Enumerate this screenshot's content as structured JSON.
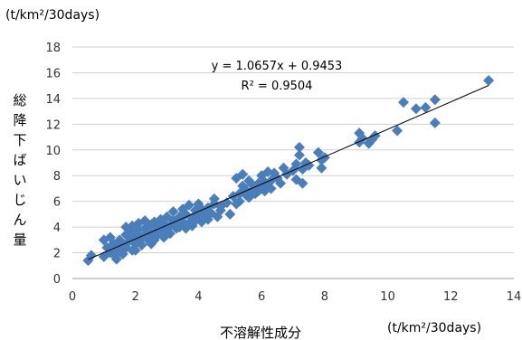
{
  "chart_data": {
    "type": "scatter",
    "x_unit": "(t/km²/30days)",
    "y_unit": "(t/km²/30days)",
    "xlabel": "不溶解性成分",
    "ylabel": "総降下ばいじん量",
    "xlim": [
      0,
      14
    ],
    "ylim": [
      0,
      18
    ],
    "x_ticks": [
      0,
      2,
      4,
      6,
      8,
      10,
      12,
      14
    ],
    "y_ticks": [
      0,
      2,
      4,
      6,
      8,
      10,
      12,
      14,
      16,
      18
    ],
    "grid": "horizontal",
    "marker_color": "#4a7ebb",
    "trendline": {
      "slope": 1.0657,
      "intercept": 0.9453,
      "x_range": [
        0.5,
        13.2
      ],
      "equation": "y = 1.0657x + 0.9453",
      "r2": "R² = 0.9504",
      "color": "#000000"
    },
    "points": [
      [
        0.5,
        1.4
      ],
      [
        0.6,
        1.8
      ],
      [
        1.0,
        1.7
      ],
      [
        1.0,
        3.0
      ],
      [
        1.1,
        2.4
      ],
      [
        1.2,
        3.2
      ],
      [
        1.2,
        2.0
      ],
      [
        1.3,
        1.9
      ],
      [
        1.3,
        2.7
      ],
      [
        1.4,
        1.5
      ],
      [
        1.4,
        2.4
      ],
      [
        1.5,
        2.1
      ],
      [
        1.5,
        3.0
      ],
      [
        1.6,
        2.6
      ],
      [
        1.6,
        1.9
      ],
      [
        1.7,
        3.4
      ],
      [
        1.7,
        2.4
      ],
      [
        1.7,
        4.0
      ],
      [
        1.8,
        2.9
      ],
      [
        1.8,
        3.6
      ],
      [
        1.9,
        2.2
      ],
      [
        1.9,
        3.1
      ],
      [
        1.9,
        4.1
      ],
      [
        2.0,
        2.7
      ],
      [
        2.0,
        3.5
      ],
      [
        2.0,
        2.2
      ],
      [
        2.1,
        3.8
      ],
      [
        2.1,
        2.9
      ],
      [
        2.1,
        4.3
      ],
      [
        2.2,
        3.2
      ],
      [
        2.2,
        2.6
      ],
      [
        2.3,
        3.9
      ],
      [
        2.3,
        3.4
      ],
      [
        2.3,
        4.5
      ],
      [
        2.4,
        3.0
      ],
      [
        2.4,
        3.7
      ],
      [
        2.5,
        4.2
      ],
      [
        2.5,
        3.3
      ],
      [
        2.5,
        2.7
      ],
      [
        2.6,
        4.4
      ],
      [
        2.6,
        3.6
      ],
      [
        2.6,
        3.0
      ],
      [
        2.7,
        4.0
      ],
      [
        2.7,
        3.4
      ],
      [
        2.8,
        4.6
      ],
      [
        2.8,
        3.8
      ],
      [
        2.9,
        3.2
      ],
      [
        2.9,
        4.3
      ],
      [
        3.0,
        3.7
      ],
      [
        3.0,
        4.8
      ],
      [
        3.1,
        4.1
      ],
      [
        3.1,
        3.5
      ],
      [
        3.2,
        4.5
      ],
      [
        3.2,
        5.2
      ],
      [
        3.3,
        3.9
      ],
      [
        3.3,
        4.3
      ],
      [
        3.4,
        4.8
      ],
      [
        3.4,
        4.0
      ],
      [
        3.5,
        5.4
      ],
      [
        3.5,
        4.4
      ],
      [
        3.6,
        3.9
      ],
      [
        3.6,
        5.0
      ],
      [
        3.7,
        4.3
      ],
      [
        3.7,
        5.7
      ],
      [
        3.8,
        4.7
      ],
      [
        3.8,
        4.1
      ],
      [
        3.9,
        5.3
      ],
      [
        3.9,
        4.5
      ],
      [
        4.0,
        5.8
      ],
      [
        4.0,
        4.9
      ],
      [
        4.1,
        4.4
      ],
      [
        4.1,
        5.4
      ],
      [
        4.2,
        5.0
      ],
      [
        4.3,
        4.6
      ],
      [
        4.3,
        5.5
      ],
      [
        4.4,
        5.1
      ],
      [
        4.5,
        5.8
      ],
      [
        4.5,
        6.2
      ],
      [
        4.6,
        4.8
      ],
      [
        4.7,
        5.3
      ],
      [
        4.7,
        5.6
      ],
      [
        4.9,
        5.9
      ],
      [
        5.0,
        5.0
      ],
      [
        5.1,
        6.4
      ],
      [
        5.2,
        5.8
      ],
      [
        5.2,
        7.8
      ],
      [
        5.3,
        6.6
      ],
      [
        5.3,
        6.0
      ],
      [
        5.4,
        7.2
      ],
      [
        5.4,
        8.1
      ],
      [
        5.5,
        6.5
      ],
      [
        5.5,
        6.9
      ],
      [
        5.6,
        7.6
      ],
      [
        5.6,
        6.3
      ],
      [
        5.7,
        6.8
      ],
      [
        5.7,
        7.3
      ],
      [
        5.8,
        6.6
      ],
      [
        5.8,
        7.0
      ],
      [
        5.9,
        7.4
      ],
      [
        5.9,
        6.8
      ],
      [
        6.0,
        8.0
      ],
      [
        6.0,
        7.2
      ],
      [
        6.1,
        7.5
      ],
      [
        6.1,
        6.8
      ],
      [
        6.2,
        8.3
      ],
      [
        6.2,
        7.1
      ],
      [
        6.3,
        7.6
      ],
      [
        6.3,
        7.0
      ],
      [
        6.4,
        8.2
      ],
      [
        6.5,
        7.8
      ],
      [
        6.6,
        7.4
      ],
      [
        6.7,
        8.6
      ],
      [
        6.8,
        8.1
      ],
      [
        7.0,
        8.4
      ],
      [
        7.1,
        7.7
      ],
      [
        7.1,
        8.9
      ],
      [
        7.2,
        9.6
      ],
      [
        7.2,
        10.2
      ],
      [
        7.3,
        7.4
      ],
      [
        7.3,
        8.5
      ],
      [
        7.4,
        9.0
      ],
      [
        7.5,
        8.8
      ],
      [
        7.8,
        9.8
      ],
      [
        7.9,
        8.6
      ],
      [
        7.9,
        9.2
      ],
      [
        8.0,
        9.4
      ],
      [
        9.1,
        10.6
      ],
      [
        9.1,
        11.3
      ],
      [
        9.2,
        10.9
      ],
      [
        9.4,
        10.5
      ],
      [
        9.5,
        10.8
      ],
      [
        9.6,
        11.1
      ],
      [
        10.3,
        11.5
      ],
      [
        10.5,
        13.7
      ],
      [
        10.9,
        13.2
      ],
      [
        11.2,
        13.3
      ],
      [
        11.5,
        13.9
      ],
      [
        11.5,
        12.1
      ],
      [
        13.2,
        15.4
      ]
    ]
  }
}
